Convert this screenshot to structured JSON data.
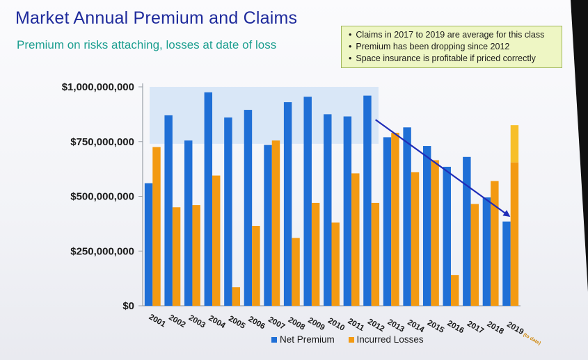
{
  "title": "Market Annual Premium and Claims",
  "subtitle": "Premium on risks attaching, losses at date of loss",
  "notes": [
    "Claims in 2017 to 2019 are average for this class",
    "Premium has been dropping since 2012",
    "Space insurance is profitable if priced correctly"
  ],
  "colors": {
    "net_premium": "#1f6fd6",
    "incurred_losses": "#f39a12",
    "highlight": "#cfe1f5",
    "arrow": "#1f2cb8"
  },
  "chart_data": {
    "type": "bar",
    "categories": [
      "2001",
      "2002",
      "2003",
      "2004",
      "2005",
      "2006",
      "2007",
      "2008",
      "2009",
      "2010",
      "2011",
      "2012",
      "2013",
      "2014",
      "2015",
      "2016",
      "2017",
      "2018",
      "2019"
    ],
    "category_note": {
      "index": 18,
      "text": "(to date)"
    },
    "series": [
      {
        "name": "Net Premium",
        "values": [
          560000000,
          870000000,
          755000000,
          975000000,
          860000000,
          895000000,
          735000000,
          930000000,
          955000000,
          875000000,
          865000000,
          960000000,
          770000000,
          815000000,
          730000000,
          635000000,
          680000000,
          495000000,
          385000000
        ]
      },
      {
        "name": "Incurred Losses",
        "values": [
          725000000,
          450000000,
          460000000,
          595000000,
          85000000,
          365000000,
          755000000,
          310000000,
          470000000,
          380000000,
          605000000,
          470000000,
          790000000,
          610000000,
          665000000,
          140000000,
          465000000,
          570000000,
          825000000
        ]
      }
    ],
    "stacked_highlight": {
      "series": "Incurred Losses",
      "index": 18,
      "lower": 655000000,
      "upper": 825000000
    },
    "highlight_band": {
      "from_index": 0,
      "to_index": 11,
      "lower": 740000000,
      "upper": 1000000000
    },
    "trend_arrow": {
      "from_index": 11,
      "from_value": 850000000,
      "to_index": 18,
      "to_value": 410000000
    },
    "yticks": [
      "$1,000,000,000",
      "$750,000,000",
      "$500,000,000",
      "$250,000,000",
      "$0"
    ],
    "ytick_values": [
      1000000000,
      750000000,
      500000000,
      250000000,
      0
    ],
    "ylim": [
      0,
      1000000000
    ],
    "legend_position": "bottom",
    "grid": false
  }
}
